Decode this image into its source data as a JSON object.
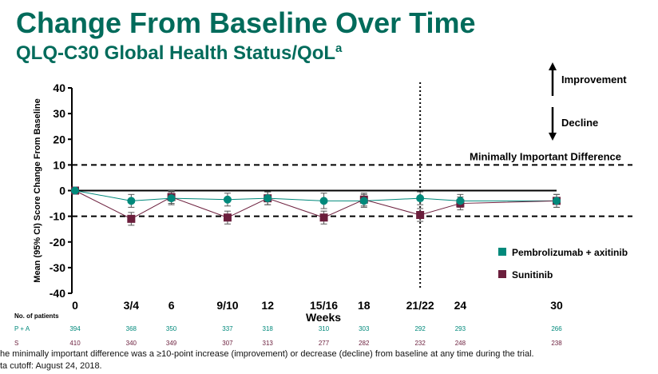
{
  "header": {
    "title": "Change From Baseline Over Time",
    "subtitle": "QLQ-C30 Global Health Status/QoL",
    "subtitle_sup": "a"
  },
  "chart_data": {
    "type": "line",
    "ylabel": "Mean (95% CI) Score Change From Baseline",
    "xlabel": "Weeks",
    "ylim": [
      -40,
      40
    ],
    "yticks": [
      40,
      30,
      20,
      10,
      0,
      -10,
      -20,
      -30,
      -40
    ],
    "categories": [
      "0",
      "3/4",
      "6",
      "9/10",
      "12",
      "15/16",
      "18",
      "21/22",
      "24",
      "30"
    ],
    "x_weeks": [
      0,
      3.5,
      6,
      9.5,
      12,
      15.5,
      18,
      21.5,
      24,
      30
    ],
    "reference_lines": [
      {
        "y": 10,
        "label": "Minimally Important Difference"
      },
      {
        "y": -10,
        "label": ""
      }
    ],
    "vertical_line_week": 21.5,
    "series": [
      {
        "name": "Pembrolizumab + axitinib",
        "color": "#00897b",
        "marker": "circle",
        "values": [
          0,
          -4,
          -3,
          -3.5,
          -3,
          -4,
          -4,
          -3,
          -4,
          -4
        ],
        "ci_low": [
          0,
          -6.5,
          -5.5,
          -6,
          -5.5,
          -7,
          -6.5,
          -5.5,
          -6.5,
          -6.5
        ],
        "ci_high": [
          0,
          -1.5,
          -0.5,
          -1,
          -0.5,
          -1,
          -1.5,
          -0.5,
          -1.5,
          -1.5
        ]
      },
      {
        "name": "Sunitinib",
        "color": "#6b1e3c",
        "marker": "square",
        "values": [
          0,
          -11,
          -2.5,
          -10.5,
          -3,
          -10.5,
          -3.5,
          -9.5,
          -5,
          -4
        ],
        "ci_low": [
          0,
          -13.5,
          -5,
          -13,
          -5.5,
          -13,
          -6,
          -12,
          -7.5,
          -6.5
        ],
        "ci_high": [
          0,
          -8.5,
          0,
          -8,
          -0.5,
          -8,
          -1,
          -7,
          -2.5,
          -1.5
        ]
      }
    ],
    "annotations": {
      "improvement": "Improvement",
      "decline": "Decline"
    },
    "legend_position": "bottom-right"
  },
  "patients": {
    "heading": "No. of patients",
    "rows": [
      {
        "label": "P + A",
        "color": "#00897b",
        "counts": [
          "394",
          "368",
          "350",
          "337",
          "318",
          "310",
          "303",
          "292",
          "293",
          "266"
        ]
      },
      {
        "label": "S",
        "color": "#6b1e3c",
        "counts": [
          "410",
          "340",
          "349",
          "307",
          "313",
          "277",
          "282",
          "232",
          "248",
          "238"
        ]
      }
    ]
  },
  "footnotes": [
    "he minimally important difference was a ≥10-point increase (improvement) or decrease (decline) from baseline at any time during the trial.",
    "ta cutoff: August 24, 2018."
  ]
}
